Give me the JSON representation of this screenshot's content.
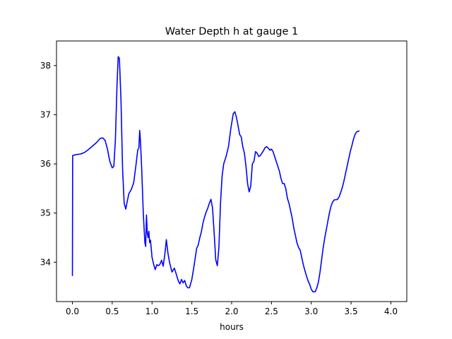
{
  "chart_data": {
    "type": "line",
    "title": "Water Depth h at gauge 1",
    "xlabel": "hours",
    "ylabel": "",
    "xlim": [
      -0.2,
      4.2
    ],
    "ylim": [
      33.2,
      38.5
    ],
    "xticks": [
      0.0,
      0.5,
      1.0,
      1.5,
      2.0,
      2.5,
      3.0,
      3.5,
      4.0
    ],
    "xtick_labels": [
      "0.0",
      "0.5",
      "1.0",
      "1.5",
      "2.0",
      "2.5",
      "3.0",
      "3.5",
      "4.0"
    ],
    "yticks": [
      34,
      35,
      36,
      37,
      38
    ],
    "ytick_labels": [
      "34",
      "35",
      "36",
      "37",
      "38"
    ],
    "grid": false,
    "series": [
      {
        "color": "#0000ff",
        "points": [
          [
            0.0,
            33.73
          ],
          [
            0.003,
            36.17
          ],
          [
            0.05,
            36.19
          ],
          [
            0.1,
            36.2
          ],
          [
            0.15,
            36.23
          ],
          [
            0.2,
            36.29
          ],
          [
            0.25,
            36.36
          ],
          [
            0.3,
            36.43
          ],
          [
            0.35,
            36.52
          ],
          [
            0.38,
            36.53
          ],
          [
            0.41,
            36.48
          ],
          [
            0.44,
            36.3
          ],
          [
            0.47,
            36.05
          ],
          [
            0.5,
            35.92
          ],
          [
            0.52,
            35.95
          ],
          [
            0.54,
            36.5
          ],
          [
            0.56,
            37.6
          ],
          [
            0.575,
            38.18
          ],
          [
            0.59,
            38.15
          ],
          [
            0.61,
            37.3
          ],
          [
            0.63,
            35.9
          ],
          [
            0.65,
            35.2
          ],
          [
            0.67,
            35.08
          ],
          [
            0.69,
            35.25
          ],
          [
            0.71,
            35.4
          ],
          [
            0.74,
            35.48
          ],
          [
            0.77,
            35.62
          ],
          [
            0.8,
            36.0
          ],
          [
            0.82,
            36.28
          ],
          [
            0.835,
            36.33
          ],
          [
            0.845,
            36.68
          ],
          [
            0.855,
            36.45
          ],
          [
            0.87,
            35.9
          ],
          [
            0.89,
            35.0
          ],
          [
            0.91,
            34.4
          ],
          [
            0.92,
            34.32
          ],
          [
            0.93,
            34.96
          ],
          [
            0.94,
            34.6
          ],
          [
            0.95,
            34.5
          ],
          [
            0.96,
            34.63
          ],
          [
            0.97,
            34.4
          ],
          [
            0.98,
            34.45
          ],
          [
            1.0,
            34.1
          ],
          [
            1.02,
            33.96
          ],
          [
            1.04,
            33.85
          ],
          [
            1.06,
            33.95
          ],
          [
            1.08,
            33.93
          ],
          [
            1.1,
            33.96
          ],
          [
            1.12,
            34.04
          ],
          [
            1.14,
            33.92
          ],
          [
            1.16,
            34.15
          ],
          [
            1.18,
            34.46
          ],
          [
            1.2,
            34.18
          ],
          [
            1.22,
            34.0
          ],
          [
            1.25,
            33.8
          ],
          [
            1.28,
            33.88
          ],
          [
            1.3,
            33.78
          ],
          [
            1.33,
            33.62
          ],
          [
            1.35,
            33.56
          ],
          [
            1.37,
            33.65
          ],
          [
            1.39,
            33.58
          ],
          [
            1.41,
            33.63
          ],
          [
            1.43,
            33.52
          ],
          [
            1.45,
            33.48
          ],
          [
            1.47,
            33.48
          ],
          [
            1.5,
            33.65
          ],
          [
            1.53,
            33.95
          ],
          [
            1.56,
            34.28
          ],
          [
            1.58,
            34.35
          ],
          [
            1.6,
            34.5
          ],
          [
            1.62,
            34.62
          ],
          [
            1.64,
            34.8
          ],
          [
            1.66,
            34.92
          ],
          [
            1.68,
            35.02
          ],
          [
            1.7,
            35.1
          ],
          [
            1.72,
            35.2
          ],
          [
            1.74,
            35.28
          ],
          [
            1.76,
            35.1
          ],
          [
            1.78,
            34.6
          ],
          [
            1.8,
            34.05
          ],
          [
            1.82,
            33.93
          ],
          [
            1.84,
            34.3
          ],
          [
            1.86,
            35.2
          ],
          [
            1.88,
            35.75
          ],
          [
            1.9,
            36.0
          ],
          [
            1.93,
            36.15
          ],
          [
            1.96,
            36.35
          ],
          [
            1.99,
            36.72
          ],
          [
            2.02,
            37.02
          ],
          [
            2.04,
            37.06
          ],
          [
            2.06,
            36.95
          ],
          [
            2.08,
            36.78
          ],
          [
            2.1,
            36.6
          ],
          [
            2.12,
            36.55
          ],
          [
            2.14,
            36.35
          ],
          [
            2.16,
            36.22
          ],
          [
            2.18,
            35.95
          ],
          [
            2.2,
            35.6
          ],
          [
            2.22,
            35.43
          ],
          [
            2.24,
            35.55
          ],
          [
            2.26,
            36.0
          ],
          [
            2.28,
            36.05
          ],
          [
            2.3,
            36.25
          ],
          [
            2.32,
            36.22
          ],
          [
            2.34,
            36.15
          ],
          [
            2.36,
            36.17
          ],
          [
            2.38,
            36.22
          ],
          [
            2.4,
            36.27
          ],
          [
            2.42,
            36.33
          ],
          [
            2.44,
            36.35
          ],
          [
            2.46,
            36.32
          ],
          [
            2.48,
            36.28
          ],
          [
            2.5,
            36.3
          ],
          [
            2.52,
            36.25
          ],
          [
            2.54,
            36.15
          ],
          [
            2.56,
            36.05
          ],
          [
            2.58,
            35.95
          ],
          [
            2.6,
            35.85
          ],
          [
            2.62,
            35.7
          ],
          [
            2.64,
            35.6
          ],
          [
            2.66,
            35.6
          ],
          [
            2.68,
            35.5
          ],
          [
            2.7,
            35.3
          ],
          [
            2.72,
            35.2
          ],
          [
            2.74,
            35.05
          ],
          [
            2.76,
            34.9
          ],
          [
            2.78,
            34.7
          ],
          [
            2.8,
            34.55
          ],
          [
            2.82,
            34.4
          ],
          [
            2.84,
            34.3
          ],
          [
            2.86,
            34.25
          ],
          [
            2.88,
            34.1
          ],
          [
            2.9,
            33.95
          ],
          [
            2.92,
            33.83
          ],
          [
            2.94,
            33.72
          ],
          [
            2.96,
            33.62
          ],
          [
            2.98,
            33.55
          ],
          [
            3.0,
            33.45
          ],
          [
            3.02,
            33.4
          ],
          [
            3.05,
            33.4
          ],
          [
            3.07,
            33.48
          ],
          [
            3.09,
            33.6
          ],
          [
            3.11,
            33.8
          ],
          [
            3.13,
            34.05
          ],
          [
            3.15,
            34.3
          ],
          [
            3.17,
            34.5
          ],
          [
            3.19,
            34.67
          ],
          [
            3.21,
            34.85
          ],
          [
            3.23,
            35.02
          ],
          [
            3.25,
            35.15
          ],
          [
            3.27,
            35.23
          ],
          [
            3.29,
            35.27
          ],
          [
            3.31,
            35.27
          ],
          [
            3.33,
            35.28
          ],
          [
            3.35,
            35.33
          ],
          [
            3.37,
            35.42
          ],
          [
            3.39,
            35.52
          ],
          [
            3.41,
            35.65
          ],
          [
            3.43,
            35.8
          ],
          [
            3.45,
            35.95
          ],
          [
            3.47,
            36.1
          ],
          [
            3.49,
            36.25
          ],
          [
            3.51,
            36.37
          ],
          [
            3.53,
            36.5
          ],
          [
            3.55,
            36.6
          ],
          [
            3.57,
            36.65
          ],
          [
            3.6,
            36.67
          ]
        ]
      }
    ]
  }
}
